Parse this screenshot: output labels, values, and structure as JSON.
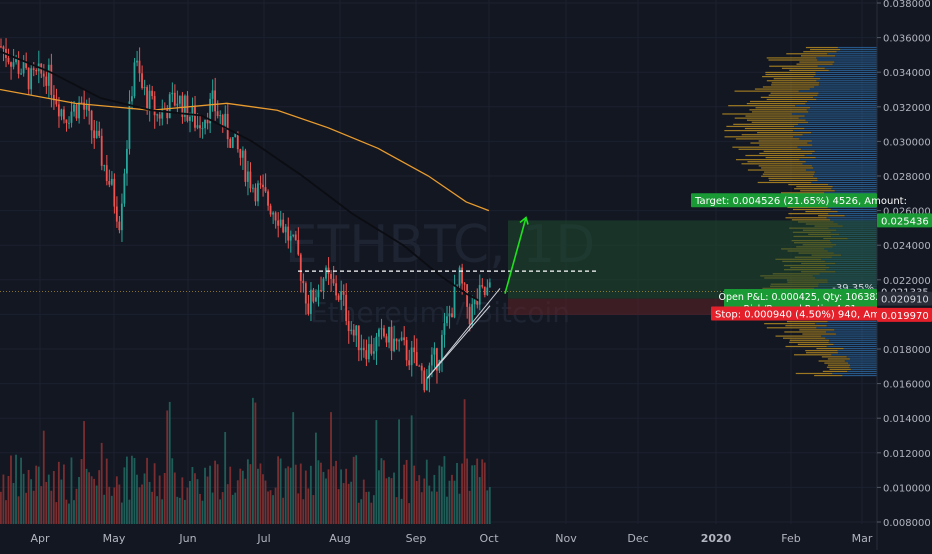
{
  "chart_data": {
    "type": "candlestick",
    "symbol_watermark": "ETHBTC, 1D",
    "name_watermark": "Ethereum / Bitcoin",
    "x_ticks": [
      "Apr",
      "May",
      "Jun",
      "Jul",
      "Aug",
      "Sep",
      "Oct",
      "Nov",
      "Dec",
      "2020",
      "Feb",
      "Mar"
    ],
    "y_ticks": [
      "0.038000",
      "0.036000",
      "0.034000",
      "0.032000",
      "0.030000",
      "0.028000",
      "0.026000",
      "0.024000",
      "0.022000",
      "0.020000",
      "0.018000",
      "0.016000",
      "0.014000",
      "0.012000",
      "0.010000",
      "0.008000"
    ],
    "y_range": [
      0.008,
      0.039
    ],
    "current_price": "0.021335",
    "labels": {
      "target": "Target: 0.004526 (21.65%) 4526, Amount:",
      "target_price": "0.025436",
      "pct": "-39.35%",
      "pnl": "Open P&L: 0.000425, Qty: 106382",
      "rr": "Risk/Reward Ratio: 4.81",
      "entry_price": "0.020910",
      "stop": "Stop: 0.000940 (4.50%) 940, Amount:",
      "stop_price": "0.019970"
    },
    "levels": {
      "resistance": 0.0225,
      "target": 0.025436,
      "entry": 0.02091,
      "stop": 0.01997
    },
    "keypoints": [
      [
        0,
        0.0355
      ],
      [
        6,
        0.0345
      ],
      [
        12,
        0.0335
      ],
      [
        18,
        0.034
      ],
      [
        25,
        0.0315
      ],
      [
        32,
        0.0322
      ],
      [
        38,
        0.03
      ],
      [
        44,
        0.0272
      ],
      [
        47,
        0.0255
      ],
      [
        50,
        0.03
      ],
      [
        53,
        0.0348
      ],
      [
        56,
        0.033
      ],
      [
        62,
        0.0315
      ],
      [
        70,
        0.0325
      ],
      [
        78,
        0.031
      ],
      [
        84,
        0.0322
      ],
      [
        92,
        0.03
      ],
      [
        100,
        0.0275
      ],
      [
        110,
        0.0258
      ],
      [
        118,
        0.0232
      ],
      [
        122,
        0.0205
      ],
      [
        128,
        0.0222
      ],
      [
        135,
        0.021
      ],
      [
        140,
        0.0188
      ],
      [
        146,
        0.018
      ],
      [
        152,
        0.0187
      ],
      [
        158,
        0.0182
      ],
      [
        163,
        0.0175
      ],
      [
        168,
        0.0163
      ],
      [
        173,
        0.0175
      ],
      [
        178,
        0.02
      ],
      [
        182,
        0.022
      ],
      [
        186,
        0.02
      ],
      [
        190,
        0.021
      ],
      [
        194,
        0.0213
      ]
    ],
    "ma_black": [
      [
        0,
        0.0352
      ],
      [
        20,
        0.034
      ],
      [
        40,
        0.0325
      ],
      [
        60,
        0.0318
      ],
      [
        80,
        0.0315
      ],
      [
        100,
        0.03
      ],
      [
        120,
        0.028
      ],
      [
        140,
        0.0258
      ],
      [
        160,
        0.024
      ],
      [
        175,
        0.0222
      ],
      [
        185,
        0.0212
      ],
      [
        190,
        0.0208
      ]
    ],
    "ma_orange": [
      [
        0,
        0.033
      ],
      [
        30,
        0.0322
      ],
      [
        60,
        0.0318
      ],
      [
        90,
        0.0322
      ],
      [
        110,
        0.0318
      ],
      [
        130,
        0.0308
      ],
      [
        150,
        0.0296
      ],
      [
        170,
        0.028
      ],
      [
        185,
        0.0265
      ],
      [
        194,
        0.026
      ]
    ],
    "bars_count": 195,
    "x_origin_label": "Apr"
  }
}
